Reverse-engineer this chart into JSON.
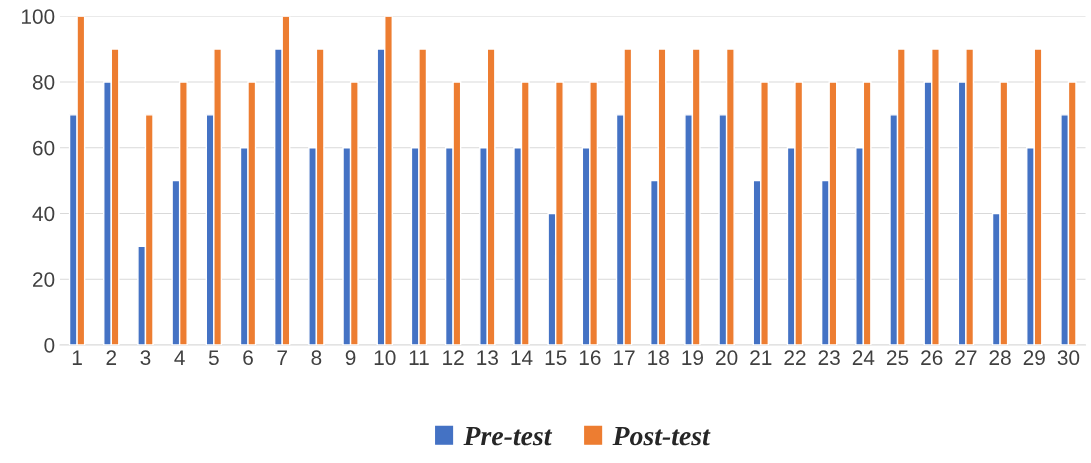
{
  "chart_data": {
    "type": "bar",
    "categories": [
      "1",
      "2",
      "3",
      "4",
      "5",
      "6",
      "7",
      "8",
      "9",
      "10",
      "11",
      "12",
      "13",
      "14",
      "15",
      "16",
      "17",
      "18",
      "19",
      "20",
      "21",
      "22",
      "23",
      "24",
      "25",
      "26",
      "27",
      "28",
      "29",
      "30"
    ],
    "series": [
      {
        "name": "Pre-test",
        "color": "#4472c4",
        "values": [
          70,
          80,
          30,
          50,
          70,
          60,
          90,
          60,
          60,
          90,
          60,
          60,
          60,
          60,
          40,
          60,
          70,
          50,
          70,
          70,
          50,
          60,
          50,
          60,
          70,
          80,
          80,
          40,
          60,
          70
        ]
      },
      {
        "name": "Post-test",
        "color": "#ed7d31",
        "values": [
          100,
          90,
          70,
          80,
          90,
          80,
          100,
          90,
          80,
          100,
          90,
          80,
          90,
          80,
          80,
          80,
          90,
          90,
          90,
          90,
          80,
          80,
          80,
          80,
          90,
          90,
          90,
          80,
          90,
          80
        ]
      }
    ],
    "ylim": [
      0,
      100
    ],
    "yticks": [
      0,
      20,
      40,
      60,
      80,
      100
    ],
    "grid": "y",
    "legend": "bottom"
  }
}
